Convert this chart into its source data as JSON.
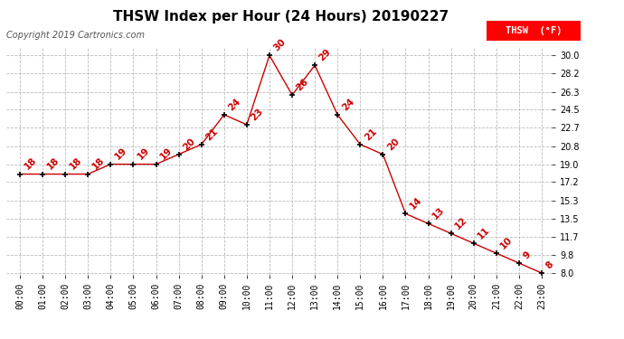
{
  "title": "THSW Index per Hour (24 Hours) 20190227",
  "copyright": "Copyright 2019 Cartronics.com",
  "legend_label": "THSW  (°F)",
  "hours": [
    0,
    1,
    2,
    3,
    4,
    5,
    6,
    7,
    8,
    9,
    10,
    11,
    12,
    13,
    14,
    15,
    16,
    17,
    18,
    19,
    20,
    21,
    22,
    23
  ],
  "values": [
    18,
    18,
    18,
    18,
    19,
    19,
    19,
    20,
    21,
    24,
    23,
    30,
    26,
    29,
    24,
    21,
    20,
    14,
    13,
    12,
    11,
    10,
    9,
    8
  ],
  "x_labels": [
    "00:00",
    "01:00",
    "02:00",
    "03:00",
    "04:00",
    "05:00",
    "06:00",
    "07:00",
    "08:00",
    "09:00",
    "10:00",
    "11:00",
    "12:00",
    "13:00",
    "14:00",
    "15:00",
    "16:00",
    "17:00",
    "18:00",
    "19:00",
    "20:00",
    "21:00",
    "22:00",
    "23:00"
  ],
  "y_ticks": [
    8.0,
    9.8,
    11.7,
    13.5,
    15.3,
    17.2,
    19.0,
    20.8,
    22.7,
    24.5,
    26.3,
    28.2,
    30.0
  ],
  "ylim": [
    7.5,
    30.8
  ],
  "xlim": [
    -0.6,
    23.6
  ],
  "line_color": "#cc0000",
  "marker_color": "#000000",
  "label_color": "#cc0000",
  "grid_color": "#bbbbbb",
  "bg_color": "#ffffff",
  "title_fontsize": 11,
  "label_fontsize": 7.5,
  "tick_fontsize": 7,
  "copyright_fontsize": 7
}
